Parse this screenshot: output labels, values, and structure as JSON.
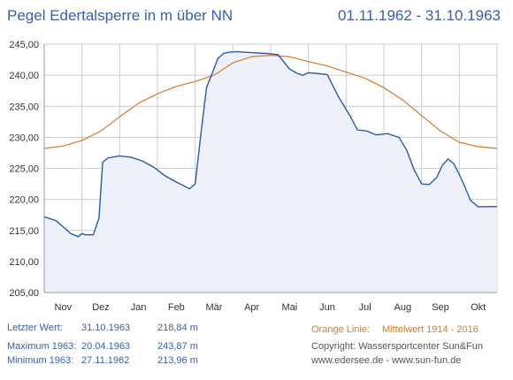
{
  "header": {
    "title": "Pegel Edertalsperre in m über NN",
    "date_range": "01.11.1962 - 31.10.1963"
  },
  "stats": {
    "last": {
      "label": "Letzter Wert:",
      "date": "31.10.1963",
      "value": "218,84 m"
    },
    "max": {
      "label": "Maximum 1963:",
      "date": "20.04.1963",
      "value": "243,87 m"
    },
    "min": {
      "label": "Minimum  1963:",
      "date": "27.11.1962",
      "value": "213,96 m"
    }
  },
  "legend": {
    "orange_label": "Orange Linie:",
    "orange_text": "Mittelwert   1914 - 2016"
  },
  "copyright": {
    "line1": "Copyright: Wassersportcenter Sun&Fun",
    "line2": "www.edersee.de   -   www.sun-fun.de"
  },
  "colors": {
    "level_line": "#2b5aa6",
    "level_fill": "#eef1fa",
    "mean_line": "#d9782a",
    "grid": "#cccccc",
    "title": "#3a5fa8"
  },
  "chart_data": {
    "type": "area",
    "title": "Pegel Edertalsperre in m über NN",
    "xlabel": "",
    "ylabel": "",
    "xlim": [
      0,
      12
    ],
    "ylim": [
      205,
      245
    ],
    "y_ticks": [
      "205,00",
      "210,00",
      "215,00",
      "220,00",
      "225,00",
      "230,00",
      "235,00",
      "240,00",
      "245,00"
    ],
    "y_tick_values": [
      205,
      210,
      215,
      220,
      225,
      230,
      235,
      240,
      245
    ],
    "x_ticks": [
      "Nov",
      "Dez",
      "Jan",
      "Feb",
      "Mär",
      "Apr",
      "Mai",
      "Jun",
      "Jul",
      "Aug",
      "Sep",
      "Okt"
    ],
    "grid": true,
    "series": [
      {
        "style": "filled-area",
        "x": [
          0,
          0.3,
          0.5,
          0.7,
          0.9,
          1.0,
          1.1,
          1.3,
          1.45,
          1.55,
          1.7,
          2.0,
          2.3,
          2.6,
          2.9,
          3.2,
          3.5,
          3.7,
          3.85,
          4.0,
          4.15,
          4.3,
          4.45,
          4.6,
          4.75,
          4.9,
          5.1,
          5.3,
          5.6,
          5.9,
          6.2,
          6.5,
          6.7,
          6.85,
          7.0,
          7.2,
          7.5,
          7.8,
          8.1,
          8.3,
          8.55,
          8.8,
          9.1,
          9.4,
          9.6,
          9.8,
          10.0,
          10.2,
          10.4,
          10.55,
          10.7,
          10.85,
          11.0,
          11.15,
          11.3,
          11.5,
          11.7,
          11.9,
          12.0
        ],
        "values": [
          217.2,
          216.6,
          215.6,
          214.5,
          214.0,
          214.5,
          214.3,
          214.3,
          217.0,
          226.0,
          226.7,
          227.0,
          226.8,
          226.2,
          225.2,
          223.8,
          222.8,
          222.2,
          221.7,
          222.5,
          230.5,
          238.0,
          240.3,
          242.7,
          243.5,
          243.7,
          243.8,
          243.7,
          243.6,
          243.5,
          243.3,
          241.0,
          240.3,
          240.0,
          240.4,
          240.3,
          240.1,
          236.5,
          233.5,
          231.2,
          231.0,
          230.4,
          230.6,
          230.0,
          228.0,
          224.8,
          222.5,
          222.4,
          223.5,
          225.5,
          226.5,
          225.8,
          224.0,
          222.0,
          219.8,
          218.8,
          218.84,
          218.84,
          218.84
        ]
      },
      {
        "name": "Mittelwert   1914 - 2016",
        "style": "line",
        "x": [
          0,
          0.5,
          1.0,
          1.5,
          2.0,
          2.5,
          3.0,
          3.5,
          4.0,
          4.5,
          5.0,
          5.5,
          6.0,
          6.5,
          7.0,
          7.5,
          8.0,
          8.5,
          9.0,
          9.5,
          10.0,
          10.5,
          11.0,
          11.5,
          12.0
        ],
        "values": [
          228.2,
          228.6,
          229.5,
          231.0,
          233.3,
          235.5,
          237.0,
          238.2,
          239.0,
          240.0,
          242.0,
          243.0,
          243.2,
          243.0,
          242.2,
          241.5,
          240.5,
          239.5,
          238.0,
          236.0,
          233.5,
          231.0,
          229.2,
          228.5,
          228.2
        ]
      }
    ]
  }
}
